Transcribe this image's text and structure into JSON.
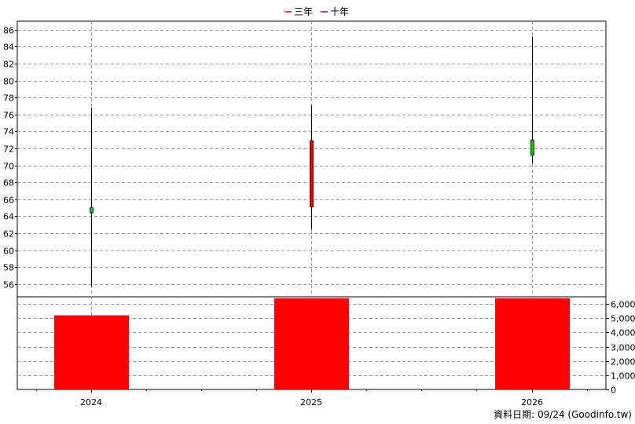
{
  "chart_data": {
    "type": "candlestick-with-volume-bars",
    "legend": [
      {
        "name": "三年",
        "color": "#ff0000"
      },
      {
        "name": "十年",
        "color": "#800080"
      }
    ],
    "categories": [
      "2024",
      "2025",
      "2026"
    ],
    "price": {
      "ylim": [
        54.5,
        87
      ],
      "ticks": [
        56,
        58,
        60,
        62,
        64,
        66,
        68,
        70,
        72,
        74,
        76,
        78,
        80,
        82,
        84,
        86
      ],
      "candles": [
        {
          "x": "2024",
          "open": 64.4,
          "close": 65.0,
          "high": 76.8,
          "low": 55.7,
          "color": "#00cc00"
        },
        {
          "x": "2025",
          "open": 72.9,
          "close": 65.1,
          "high": 77.1,
          "low": 62.4,
          "color": "#ff0000"
        },
        {
          "x": "2026",
          "open": 71.2,
          "close": 73.0,
          "high": 85.2,
          "low": 70.2,
          "color": "#00cc00"
        }
      ]
    },
    "volume": {
      "ylim": [
        0,
        6500
      ],
      "ticks": [
        0,
        1000,
        2000,
        3000,
        4000,
        5000,
        6000
      ],
      "tick_labels": [
        "0",
        "1,000",
        "2,000",
        "3,000",
        "4,000",
        "5,000",
        "6,000"
      ],
      "values": [
        5200,
        6400,
        6400
      ],
      "color": "#ff0000"
    },
    "grid": true
  },
  "footer": "資料日期: 09/24  (Goodinfo.tw)"
}
